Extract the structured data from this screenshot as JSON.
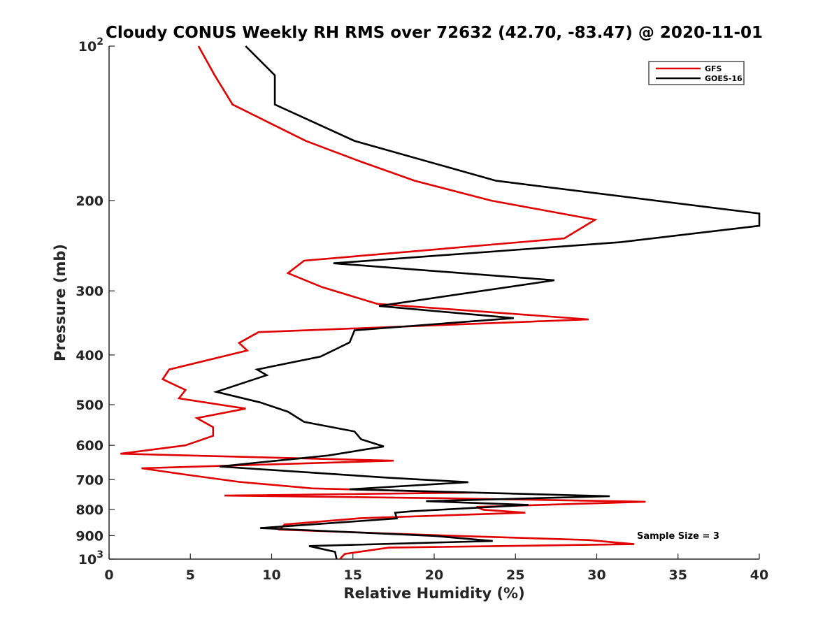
{
  "chart_data": {
    "type": "line",
    "title": "Cloudy CONUS Weekly RH RMS over 72632 (42.70, -83.47) @ 2020-11-01",
    "xlabel": "Relative Humidity (%)",
    "ylabel": "Pressure (mb)",
    "xlim": [
      0,
      40
    ],
    "ylim": [
      100,
      1000
    ],
    "y_scale": "log",
    "y_reversed": true,
    "x_ticks": [
      0,
      5,
      10,
      15,
      20,
      25,
      30,
      35,
      40
    ],
    "x_tick_labels": [
      "0",
      "5",
      "10",
      "15",
      "20",
      "25",
      "30",
      "35",
      "40"
    ],
    "y_ticks": [
      100,
      200,
      300,
      400,
      500,
      600,
      700,
      800,
      900,
      1000
    ],
    "y_tick_labels": [
      {
        "base": "10",
        "exp": "2"
      },
      {
        "base": "200",
        "exp": ""
      },
      {
        "base": "300",
        "exp": ""
      },
      {
        "base": "400",
        "exp": ""
      },
      {
        "base": "500",
        "exp": ""
      },
      {
        "base": "600",
        "exp": ""
      },
      {
        "base": "700",
        "exp": ""
      },
      {
        "base": "800",
        "exp": ""
      },
      {
        "base": "900",
        "exp": ""
      },
      {
        "base": "10",
        "exp": "3"
      }
    ],
    "grid": false,
    "legend_position": "top-right",
    "annotation": "Sample Size = 3",
    "series": [
      {
        "name": "GFS",
        "color": "#e00000",
        "points": [
          [
            5.5,
            100
          ],
          [
            6.5,
            114
          ],
          [
            7.6,
            130
          ],
          [
            12.1,
            153
          ],
          [
            15.5,
            168
          ],
          [
            18.8,
            183
          ],
          [
            23.5,
            200
          ],
          [
            29.9,
            218
          ],
          [
            28.0,
            237
          ],
          [
            12.0,
            262
          ],
          [
            11.0,
            277
          ],
          [
            13.1,
            295
          ],
          [
            16.5,
            318
          ],
          [
            29.5,
            341
          ],
          [
            9.2,
            361
          ],
          [
            8.0,
            379
          ],
          [
            8.5,
            392
          ],
          [
            3.7,
            427
          ],
          [
            3.3,
            446
          ],
          [
            4.7,
            468
          ],
          [
            4.3,
            486
          ],
          [
            8.4,
            509
          ],
          [
            5.4,
            531
          ],
          [
            6.4,
            553
          ],
          [
            6.4,
            575
          ],
          [
            4.7,
            600
          ],
          [
            0.7,
            623
          ],
          [
            17.5,
            643
          ],
          [
            2.0,
            665
          ],
          [
            4.8,
            685
          ],
          [
            8.0,
            707
          ],
          [
            12.5,
            728
          ],
          [
            22.3,
            742
          ],
          [
            7.1,
            752
          ],
          [
            20.6,
            761
          ],
          [
            33.0,
            773
          ],
          [
            22.6,
            791
          ],
          [
            23.0,
            801
          ],
          [
            25.6,
            812
          ],
          [
            15.5,
            832
          ],
          [
            10.8,
            856
          ],
          [
            10.5,
            876
          ],
          [
            20.0,
            898
          ],
          [
            29.5,
            918
          ],
          [
            32.3,
            935
          ],
          [
            17.2,
            950
          ],
          [
            14.5,
            977
          ],
          [
            14.2,
            1000
          ]
        ]
      },
      {
        "name": "GOES-16",
        "color": "#000000",
        "points": [
          [
            8.4,
            100
          ],
          [
            10.2,
            114
          ],
          [
            10.2,
            130
          ],
          [
            15.1,
            153
          ],
          [
            23.8,
            183
          ],
          [
            40.0,
            212
          ],
          [
            40.0,
            224
          ],
          [
            31.5,
            241
          ],
          [
            13.8,
            265
          ],
          [
            27.4,
            286
          ],
          [
            16.6,
            321
          ],
          [
            24.9,
            339
          ],
          [
            15.1,
            358
          ],
          [
            14.8,
            378
          ],
          [
            13.0,
            403
          ],
          [
            9.1,
            427
          ],
          [
            9.7,
            438
          ],
          [
            6.6,
            472
          ],
          [
            9.3,
            495
          ],
          [
            11.0,
            516
          ],
          [
            12.0,
            540
          ],
          [
            15.1,
            564
          ],
          [
            15.5,
            584
          ],
          [
            16.9,
            603
          ],
          [
            13.5,
            628
          ],
          [
            6.8,
            660
          ],
          [
            17.2,
            694
          ],
          [
            22.1,
            708
          ],
          [
            14.8,
            731
          ],
          [
            30.8,
            754
          ],
          [
            19.5,
            771
          ],
          [
            25.8,
            784
          ],
          [
            18.6,
            807
          ],
          [
            17.6,
            812
          ],
          [
            17.7,
            833
          ],
          [
            9.3,
            870
          ],
          [
            20.0,
            901
          ],
          [
            23.6,
            922
          ],
          [
            12.3,
            943
          ],
          [
            13.9,
            968
          ],
          [
            14.0,
            1000
          ]
        ]
      }
    ]
  }
}
